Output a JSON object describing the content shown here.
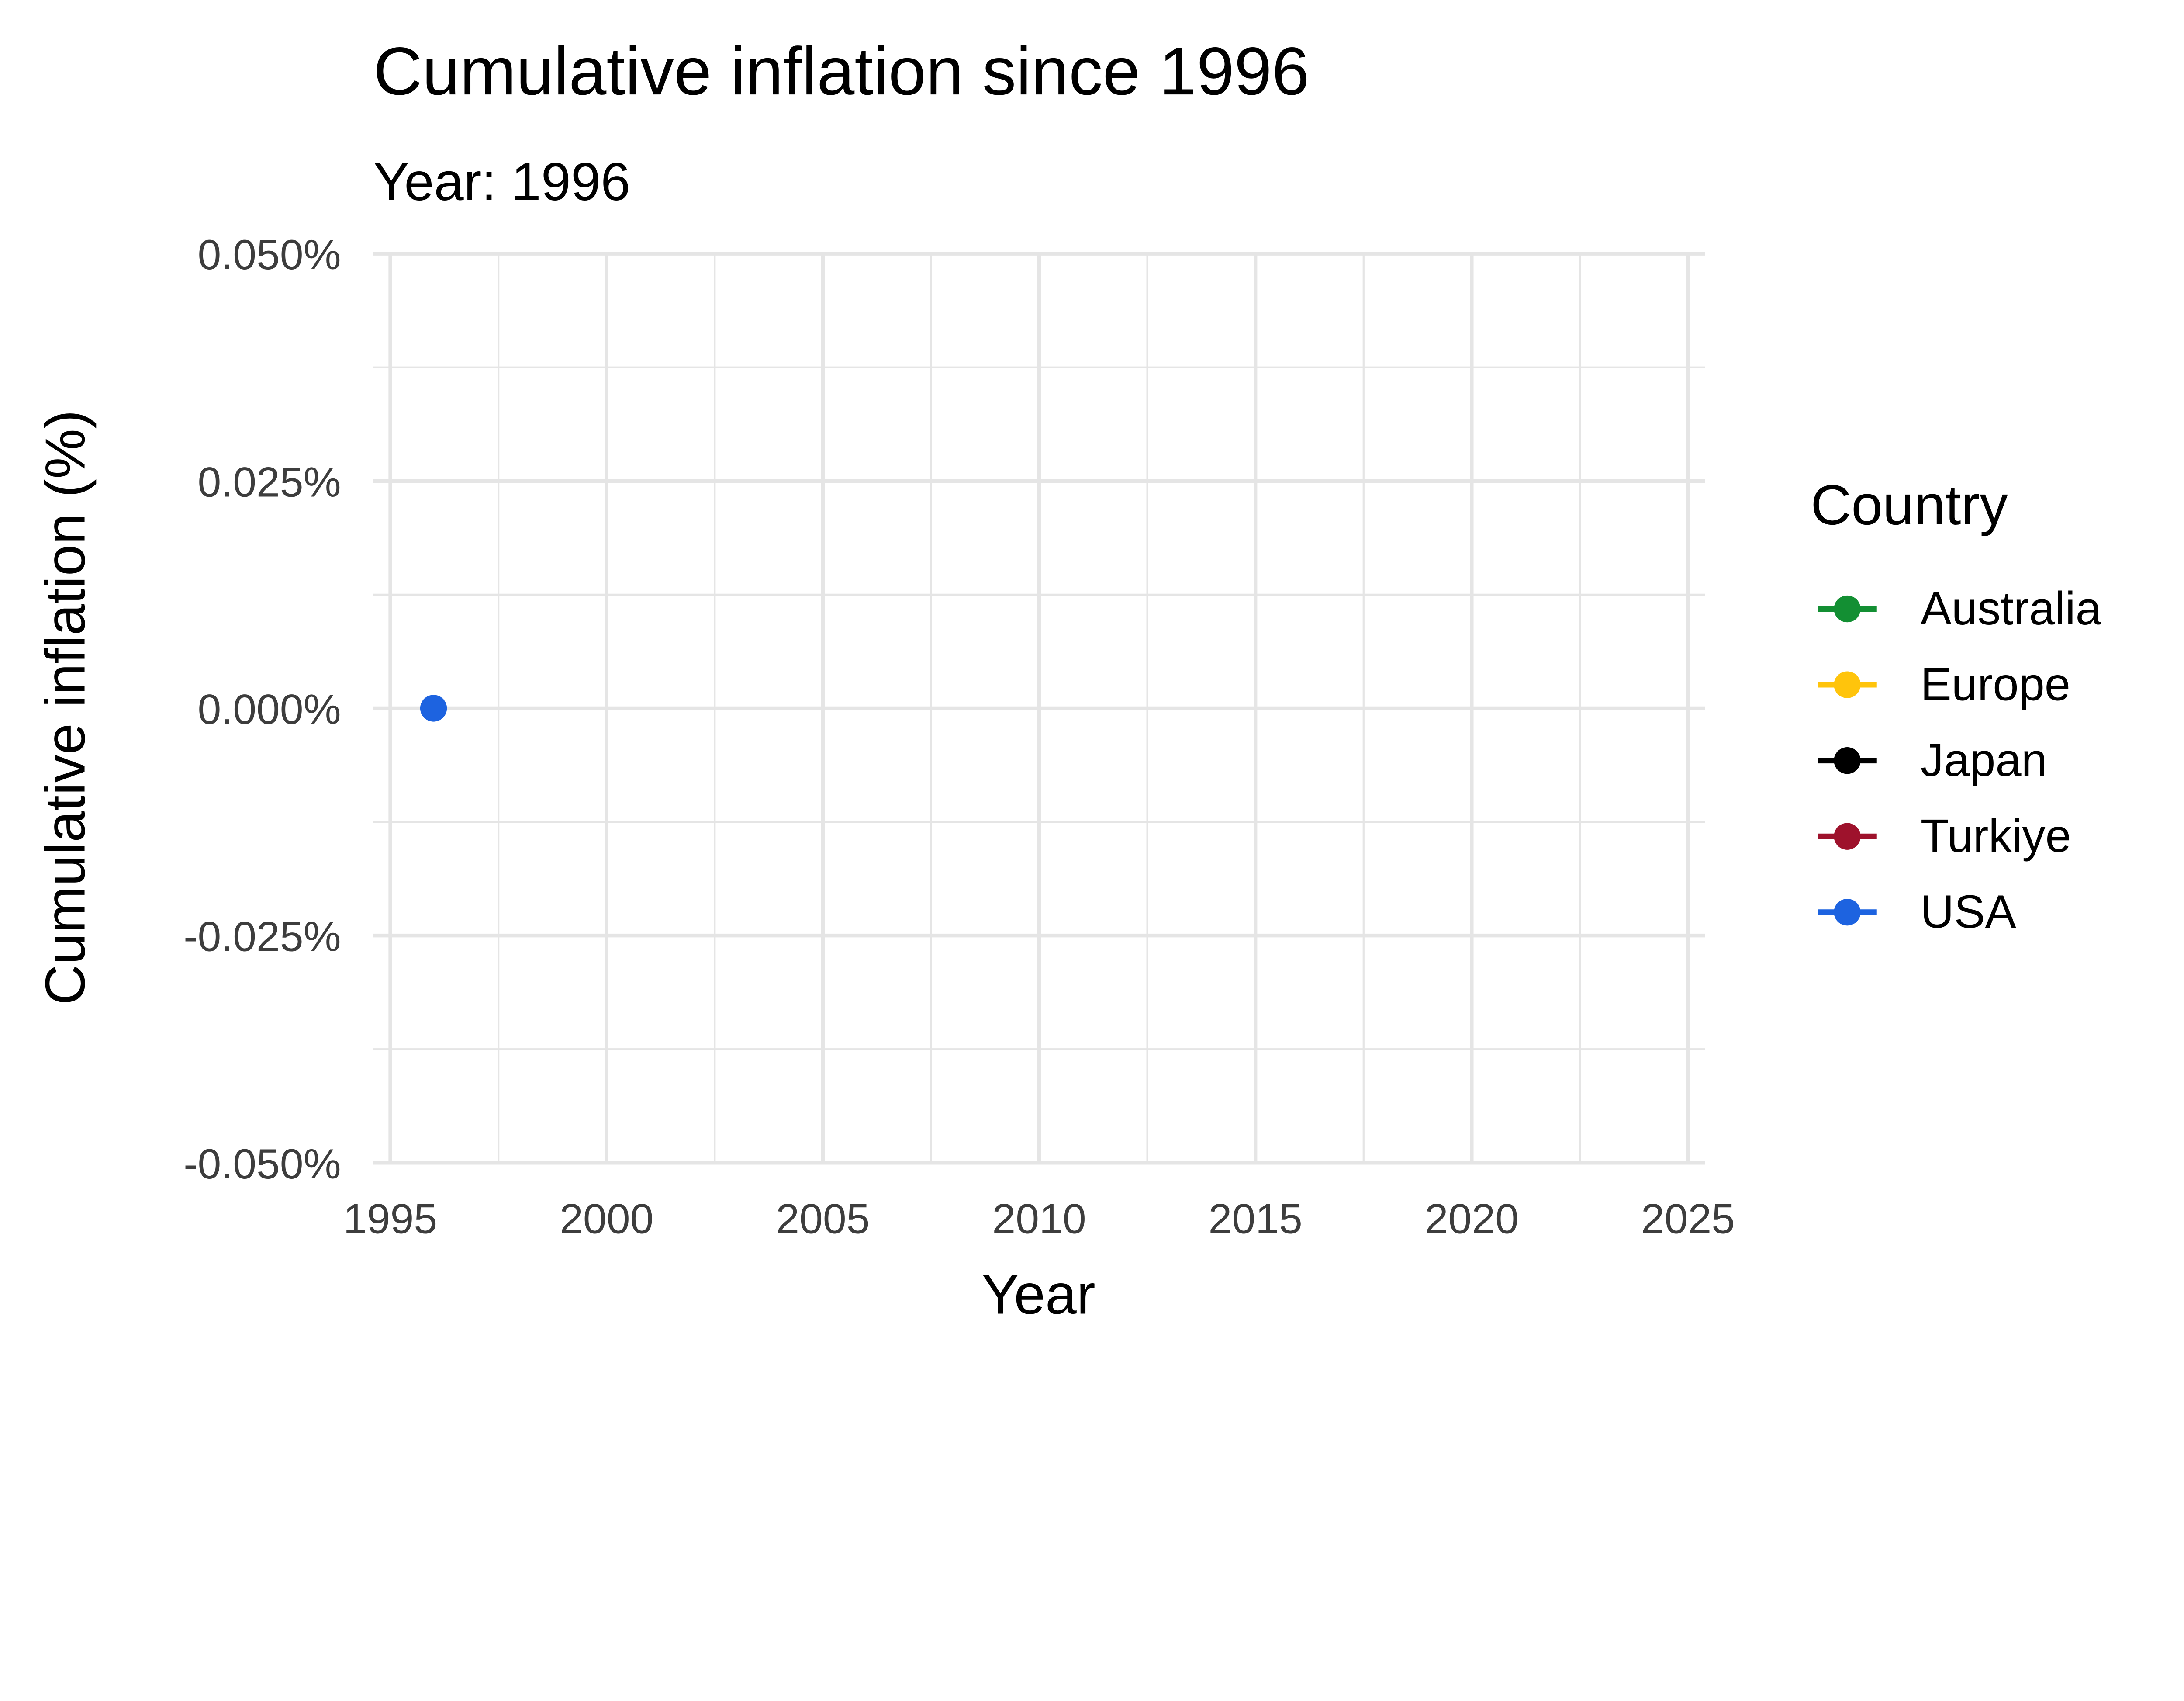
{
  "chart_data": {
    "type": "line",
    "title": "Cumulative inflation since 1996",
    "subtitle": "Year: 1996",
    "xlabel": "Year",
    "ylabel": "Cumulative inflation (%)",
    "xlim": [
      1995,
      2025
    ],
    "ylim": [
      -0.05,
      0.05
    ],
    "x_ticks": [
      "1995",
      "2000",
      "2005",
      "2010",
      "2015",
      "2020",
      "2025"
    ],
    "y_ticks": [
      "0.050%",
      "0.025%",
      "0.000%",
      "-0.025%",
      "-0.050%"
    ],
    "y_tick_values": [
      0.05,
      0.025,
      0,
      -0.025,
      -0.05
    ],
    "x_tick_values": [
      1995,
      2000,
      2005,
      2010,
      2015,
      2020,
      2025
    ],
    "grid": true,
    "legend": {
      "title": "Country",
      "position": "right"
    },
    "series": [
      {
        "name": "Australia",
        "color": "#138f33",
        "points": []
      },
      {
        "name": "Europe",
        "color": "#ffc40c",
        "points": []
      },
      {
        "name": "Japan",
        "color": "#000000",
        "points": []
      },
      {
        "name": "Turkiye",
        "color": "#9e122c",
        "points": []
      },
      {
        "name": "USA",
        "color": "#1d63e0",
        "points": [
          {
            "x": 1996,
            "y": 0
          }
        ]
      }
    ]
  }
}
